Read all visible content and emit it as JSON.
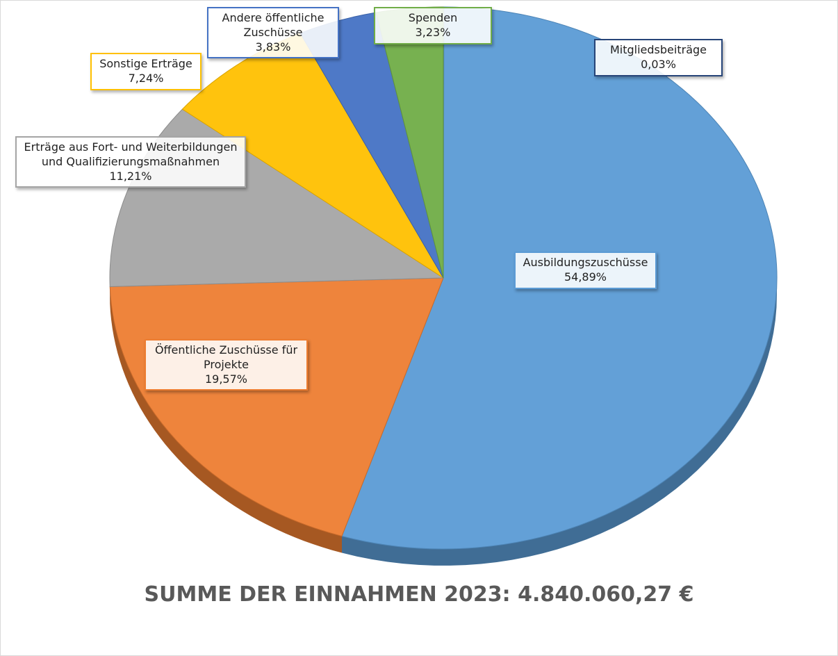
{
  "chart_data": {
    "type": "pie",
    "title": "SUMME DER EINNAHMEN 2023: 4.840.060,27 €",
    "categories": [
      "Mitgliedsbeiträge",
      "Ausbildungszuschüsse",
      "Öffentliche Zuschüsse für Projekte",
      "Erträge aus Fort- und Weiterbildungen und Qualifizierungsmaßnahmen",
      "Sonstige Erträge",
      "Andere öffentliche Zuschüsse",
      "Spenden"
    ],
    "values": [
      0.03,
      54.89,
      19.57,
      11.21,
      7.24,
      3.83,
      3.23
    ],
    "value_labels": [
      "0,03%",
      "54,89%",
      "19,57%",
      "11,21%",
      "7,24%",
      "3,83%",
      "3,23%"
    ],
    "colors": [
      "#264478",
      "#5b9bd5",
      "#ed7d31",
      "#a5a5a5",
      "#ffc000",
      "#4472c4",
      "#70ad47"
    ]
  }
}
